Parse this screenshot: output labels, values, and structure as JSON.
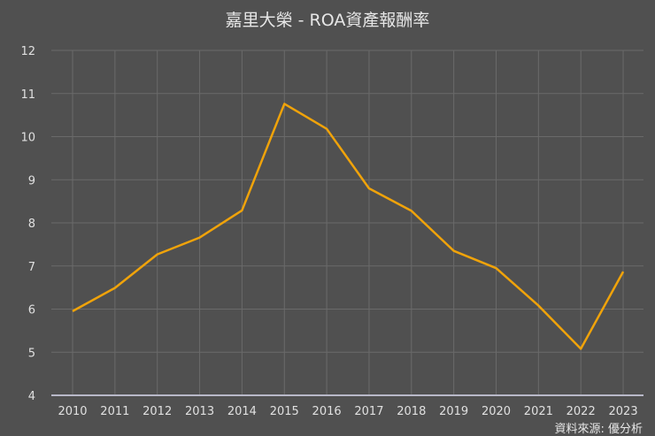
{
  "chart_data": {
    "type": "line",
    "title": "嘉里大榮 - ROA資產報酬率",
    "xlabel": "",
    "ylabel": "",
    "categories": [
      "2010",
      "2011",
      "2012",
      "2013",
      "2014",
      "2015",
      "2016",
      "2017",
      "2018",
      "2019",
      "2020",
      "2021",
      "2022",
      "2023"
    ],
    "series": [
      {
        "name": "ROA",
        "color": "#f0a30a",
        "values": [
          5.95,
          6.49,
          7.27,
          7.66,
          8.29,
          10.76,
          10.18,
          8.8,
          8.28,
          7.35,
          6.95,
          6.08,
          5.08,
          6.87
        ]
      }
    ],
    "ylim": [
      4,
      12
    ],
    "yticks": [
      4,
      5,
      6,
      7,
      8,
      9,
      10,
      11,
      12
    ],
    "grid": true,
    "legend": "none",
    "source_note": "資料來源: 優分析"
  },
  "colors": {
    "background": "#505050",
    "grid": "#6a6a6a",
    "baseline": "#b8b8c8",
    "line": "#f0a30a",
    "text": "#e0e0e0"
  }
}
